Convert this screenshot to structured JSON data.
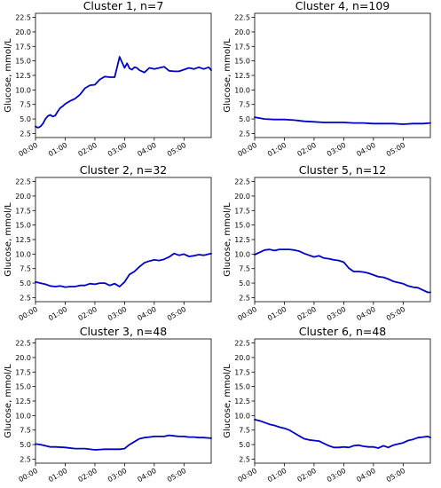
{
  "figure": {
    "line_color": "#0000cc"
  },
  "chart_data": [
    {
      "type": "line",
      "title": "Cluster 1, n=7",
      "ylabel": "Glucose, mmol/L",
      "ylim": [
        1.8,
        23.2
      ],
      "yticks": [
        "2.5",
        "5.0",
        "7.5",
        "10.0",
        "12.5",
        "15.0",
        "17.5",
        "20.0",
        "22.5"
      ],
      "xlim": [
        0,
        355
      ],
      "xticks": [
        "00:00",
        "01:00",
        "02:00",
        "03:00",
        "04:00",
        "05:00"
      ],
      "grid": false,
      "series": [
        {
          "x": [
            0,
            5,
            10,
            15,
            20,
            25,
            30,
            35,
            40,
            45,
            50,
            55,
            60,
            70,
            80,
            90,
            100,
            110,
            120,
            130,
            140,
            150,
            160,
            170,
            180,
            185,
            190,
            195,
            200,
            205,
            210,
            220,
            230,
            240,
            250,
            260,
            270,
            280,
            290,
            300,
            310,
            320,
            330,
            340,
            350,
            355
          ],
          "values": [
            3.7,
            3.5,
            3.7,
            4.2,
            5.0,
            5.5,
            5.7,
            5.4,
            5.6,
            6.3,
            6.9,
            7.2,
            7.6,
            8.1,
            8.5,
            9.2,
            10.3,
            10.8,
            10.9,
            11.8,
            12.3,
            12.2,
            12.2,
            15.7,
            13.8,
            14.6,
            13.7,
            13.5,
            13.9,
            13.8,
            13.4,
            13.0,
            13.8,
            13.6,
            13.8,
            14.0,
            13.3,
            13.2,
            13.2,
            13.5,
            13.8,
            13.6,
            13.9,
            13.6,
            13.9,
            13.4
          ]
        }
      ]
    },
    {
      "type": "line",
      "title": "Cluster 4, n=109",
      "ylabel": "Glucose, mmol/L",
      "ylim": [
        1.8,
        23.2
      ],
      "yticks": [
        "2.5",
        "5.0",
        "7.5",
        "10.0",
        "12.5",
        "15.0",
        "17.5",
        "20.0",
        "22.5"
      ],
      "xlim": [
        0,
        355
      ],
      "xticks": [
        "00:00",
        "01:00",
        "02:00",
        "03:00",
        "04:00",
        "05:00"
      ],
      "grid": false,
      "series": [
        {
          "x": [
            0,
            20,
            40,
            60,
            80,
            100,
            120,
            140,
            160,
            180,
            200,
            220,
            240,
            260,
            280,
            300,
            320,
            340,
            355
          ],
          "values": [
            5.3,
            5.0,
            4.9,
            4.9,
            4.8,
            4.6,
            4.5,
            4.4,
            4.4,
            4.4,
            4.3,
            4.3,
            4.2,
            4.2,
            4.2,
            4.1,
            4.2,
            4.2,
            4.3
          ]
        }
      ]
    },
    {
      "type": "line",
      "title": "Cluster 2, n=32",
      "ylabel": "Glucose, mmol/L",
      "ylim": [
        1.8,
        23.2
      ],
      "yticks": [
        "2.5",
        "5.0",
        "7.5",
        "10.0",
        "12.5",
        "15.0",
        "17.5",
        "20.0",
        "22.5"
      ],
      "xlim": [
        0,
        355
      ],
      "xticks": [
        "00:00",
        "01:00",
        "02:00",
        "03:00",
        "04:00",
        "05:00"
      ],
      "grid": false,
      "series": [
        {
          "x": [
            0,
            10,
            20,
            30,
            40,
            50,
            60,
            70,
            80,
            90,
            100,
            110,
            120,
            130,
            140,
            150,
            160,
            170,
            180,
            190,
            200,
            210,
            220,
            230,
            240,
            250,
            260,
            270,
            280,
            290,
            300,
            310,
            320,
            330,
            340,
            350,
            355
          ],
          "values": [
            5.2,
            5.0,
            4.8,
            4.5,
            4.4,
            4.5,
            4.3,
            4.4,
            4.4,
            4.6,
            4.6,
            4.9,
            4.8,
            5.0,
            5.0,
            4.6,
            4.9,
            4.4,
            5.2,
            6.5,
            7.0,
            7.8,
            8.5,
            8.8,
            9.0,
            8.9,
            9.1,
            9.5,
            10.1,
            9.8,
            10.0,
            9.6,
            9.7,
            9.9,
            9.8,
            10.0,
            10.1
          ]
        }
      ]
    },
    {
      "type": "line",
      "title": "Cluster 5, n=12",
      "ylabel": "Glucose, mmol/L",
      "ylim": [
        1.8,
        23.2
      ],
      "yticks": [
        "2.5",
        "5.0",
        "7.5",
        "10.0",
        "12.5",
        "15.0",
        "17.5",
        "20.0",
        "22.5"
      ],
      "xlim": [
        0,
        355
      ],
      "xticks": [
        "00:00",
        "01:00",
        "02:00",
        "03:00",
        "04:00",
        "05:00"
      ],
      "grid": false,
      "series": [
        {
          "x": [
            0,
            10,
            20,
            30,
            40,
            50,
            60,
            70,
            80,
            90,
            100,
            110,
            120,
            130,
            140,
            150,
            160,
            170,
            180,
            190,
            200,
            210,
            220,
            230,
            240,
            250,
            260,
            270,
            280,
            290,
            300,
            310,
            320,
            330,
            340,
            350,
            355
          ],
          "values": [
            9.9,
            10.3,
            10.7,
            10.8,
            10.6,
            10.8,
            10.8,
            10.8,
            10.7,
            10.5,
            10.1,
            9.8,
            9.5,
            9.7,
            9.3,
            9.2,
            9.0,
            8.9,
            8.6,
            7.6,
            7.0,
            7.0,
            6.9,
            6.7,
            6.4,
            6.1,
            6.0,
            5.7,
            5.3,
            5.1,
            4.9,
            4.5,
            4.3,
            4.2,
            3.8,
            3.4,
            3.4
          ]
        }
      ]
    },
    {
      "type": "line",
      "title": "Cluster 3, n=48",
      "ylabel": "Glucose, mmol/L",
      "ylim": [
        1.8,
        23.2
      ],
      "yticks": [
        "2.5",
        "5.0",
        "7.5",
        "10.0",
        "12.5",
        "15.0",
        "17.5",
        "20.0",
        "22.5"
      ],
      "xlim": [
        0,
        355
      ],
      "xticks": [
        "00:00",
        "01:00",
        "02:00",
        "03:00",
        "04:00",
        "05:00"
      ],
      "grid": false,
      "series": [
        {
          "x": [
            0,
            10,
            20,
            30,
            40,
            60,
            80,
            100,
            120,
            140,
            160,
            170,
            180,
            190,
            200,
            210,
            220,
            230,
            240,
            250,
            260,
            270,
            280,
            290,
            300,
            310,
            320,
            330,
            340,
            355
          ],
          "values": [
            5.1,
            5.0,
            4.8,
            4.6,
            4.6,
            4.5,
            4.3,
            4.3,
            4.1,
            4.2,
            4.2,
            4.2,
            4.3,
            5.0,
            5.5,
            6.0,
            6.2,
            6.3,
            6.4,
            6.4,
            6.4,
            6.6,
            6.5,
            6.4,
            6.4,
            6.3,
            6.3,
            6.2,
            6.2,
            6.1
          ]
        }
      ]
    },
    {
      "type": "line",
      "title": "Cluster 6, n=48",
      "ylabel": "Glucose, mmol/L",
      "ylim": [
        1.8,
        23.2
      ],
      "yticks": [
        "2.5",
        "5.0",
        "7.5",
        "10.0",
        "12.5",
        "15.0",
        "17.5",
        "20.0",
        "22.5"
      ],
      "xlim": [
        0,
        355
      ],
      "xticks": [
        "00:00",
        "01:00",
        "02:00",
        "03:00",
        "04:00",
        "05:00"
      ],
      "grid": false,
      "series": [
        {
          "x": [
            0,
            10,
            20,
            30,
            40,
            50,
            60,
            70,
            80,
            90,
            100,
            110,
            120,
            130,
            140,
            150,
            160,
            170,
            180,
            190,
            200,
            210,
            220,
            230,
            240,
            250,
            260,
            270,
            280,
            290,
            300,
            310,
            320,
            330,
            340,
            350,
            355
          ],
          "values": [
            9.3,
            9.1,
            8.8,
            8.5,
            8.3,
            8.0,
            7.8,
            7.5,
            7.0,
            6.5,
            6.0,
            5.8,
            5.7,
            5.6,
            5.2,
            4.8,
            4.5,
            4.5,
            4.6,
            4.5,
            4.8,
            4.9,
            4.7,
            4.6,
            4.6,
            4.4,
            4.8,
            4.5,
            4.9,
            5.1,
            5.3,
            5.7,
            5.9,
            6.2,
            6.3,
            6.4,
            6.2
          ]
        }
      ]
    }
  ]
}
